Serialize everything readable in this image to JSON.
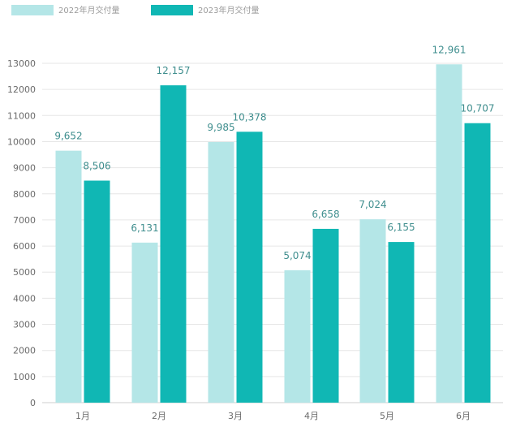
{
  "chart_data": {
    "type": "bar",
    "categories": [
      "1月",
      "2月",
      "3月",
      "4月",
      "5月",
      "6月"
    ],
    "series": [
      {
        "name": "2022年月交付量",
        "values": [
          9652,
          6131,
          9985,
          5074,
          7024,
          12961
        ],
        "labels": [
          "9,652",
          "6,131",
          "9,985",
          "5,074",
          "7,024",
          "12,961"
        ],
        "color": "#b4e6e7"
      },
      {
        "name": "2023年月交付量",
        "values": [
          8506,
          12157,
          10378,
          6658,
          6155,
          10707
        ],
        "labels": [
          "8,506",
          "12,157",
          "10,378",
          "6,658",
          "6,155",
          "10,707"
        ],
        "color": "#10b7b4"
      }
    ],
    "yticks": [
      "0",
      "1000",
      "2000",
      "3000",
      "4000",
      "5000",
      "6000",
      "7000",
      "8000",
      "9000",
      "10000",
      "11000",
      "12000",
      "13000"
    ],
    "ylim": [
      0,
      13000
    ],
    "grid": true,
    "legend_position": "top-left"
  }
}
